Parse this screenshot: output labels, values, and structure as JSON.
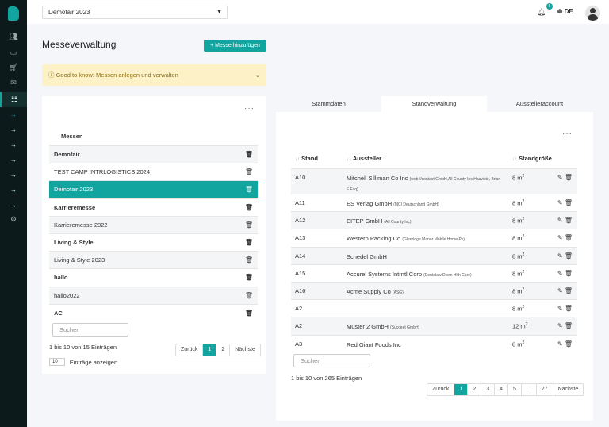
{
  "header": {
    "event_select": "Demofair 2023",
    "notifications_count": "5",
    "language": "DE"
  },
  "page": {
    "title": "Messeverwaltung",
    "add_button": "+ Messe hinzufügen",
    "info": "Good to know: Messen anlegen und verwalten"
  },
  "sidebar": {
    "icons": [
      "users-icon",
      "inbox-icon",
      "cart-icon",
      "mail-icon",
      "sliders-icon"
    ],
    "sub_items": 7,
    "settings": "gear-icon"
  },
  "messen": {
    "header": "Messen",
    "rows": [
      {
        "label": "Demofair",
        "bold": true
      },
      {
        "label": "TEST CAMP INTRLOGISTICS 2024",
        "bold": false
      },
      {
        "label": "Demofair 2023",
        "bold": false,
        "selected": true
      },
      {
        "label": "Karrieremesse",
        "bold": true
      },
      {
        "label": "Karrieremesse 2022",
        "bold": false
      },
      {
        "label": "Living & Style",
        "bold": true
      },
      {
        "label": "Living & Style 2023",
        "bold": false
      },
      {
        "label": "hallo",
        "bold": true
      },
      {
        "label": "hallo2022",
        "bold": false
      },
      {
        "label": "AC",
        "bold": true
      }
    ],
    "search_placeholder": "Suchen",
    "info": "1 bis 10 von 15 Einträgen",
    "page_size": "10",
    "page_size_label": "Einträge anzeigen",
    "pagination": [
      "Zurück",
      "1",
      "2",
      "Nächste"
    ]
  },
  "tabs": [
    "Stammdaten",
    "Standverwaltung",
    "Ausstelleraccount"
  ],
  "stands": {
    "headers": [
      "Stand",
      "Aussteller",
      "Standgröße"
    ],
    "rows": [
      {
        "stand": "A10",
        "name": "Mitchell Silliman Co Inc",
        "sub": "(web://contact GmbH,All County Inc,Haavisto, Brian F Esq)",
        "size": "8 m",
        "unit": "2"
      },
      {
        "stand": "A11",
        "name": "ES Verlag GmbH",
        "sub": "(MCI Deutschland GmbH)",
        "size": "8 m",
        "unit": "2"
      },
      {
        "stand": "A12",
        "name": "EITEP GmbH",
        "sub": "(All County Inc)",
        "size": "8 m",
        "unit": "2"
      },
      {
        "stand": "A13",
        "name": "Western Packing Co",
        "sub": "(Glenridge Manor Mobile Home Pk)",
        "size": "8 m",
        "unit": "2"
      },
      {
        "stand": "A14",
        "name": "Schedel GmbH",
        "sub": "",
        "size": "8 m",
        "unit": "2"
      },
      {
        "stand": "A15",
        "name": "Accurel Systems Intrntl Corp",
        "sub": "(Dentalaw Divsn Hlth Care)",
        "size": "8 m",
        "unit": "2"
      },
      {
        "stand": "A16",
        "name": "Acme Supply Co",
        "sub": "(ASG)",
        "size": "8 m",
        "unit": "2"
      },
      {
        "stand": "A2",
        "name": "",
        "sub": "",
        "size": "8 m",
        "unit": "2"
      },
      {
        "stand": "A2",
        "name": "Muster 2 GmbH",
        "sub": "(Succeet GmbH)",
        "size": "12 m",
        "unit": "2"
      },
      {
        "stand": "A3",
        "name": "Red Giant Foods Inc",
        "sub": "",
        "size": "8 m",
        "unit": "2"
      }
    ],
    "search_placeholder": "Suchen",
    "info": "1 bis 10 von 265 Einträgen",
    "pagination": [
      "Zurück",
      "1",
      "2",
      "3",
      "4",
      "5",
      "...",
      "27",
      "Nächste"
    ]
  }
}
